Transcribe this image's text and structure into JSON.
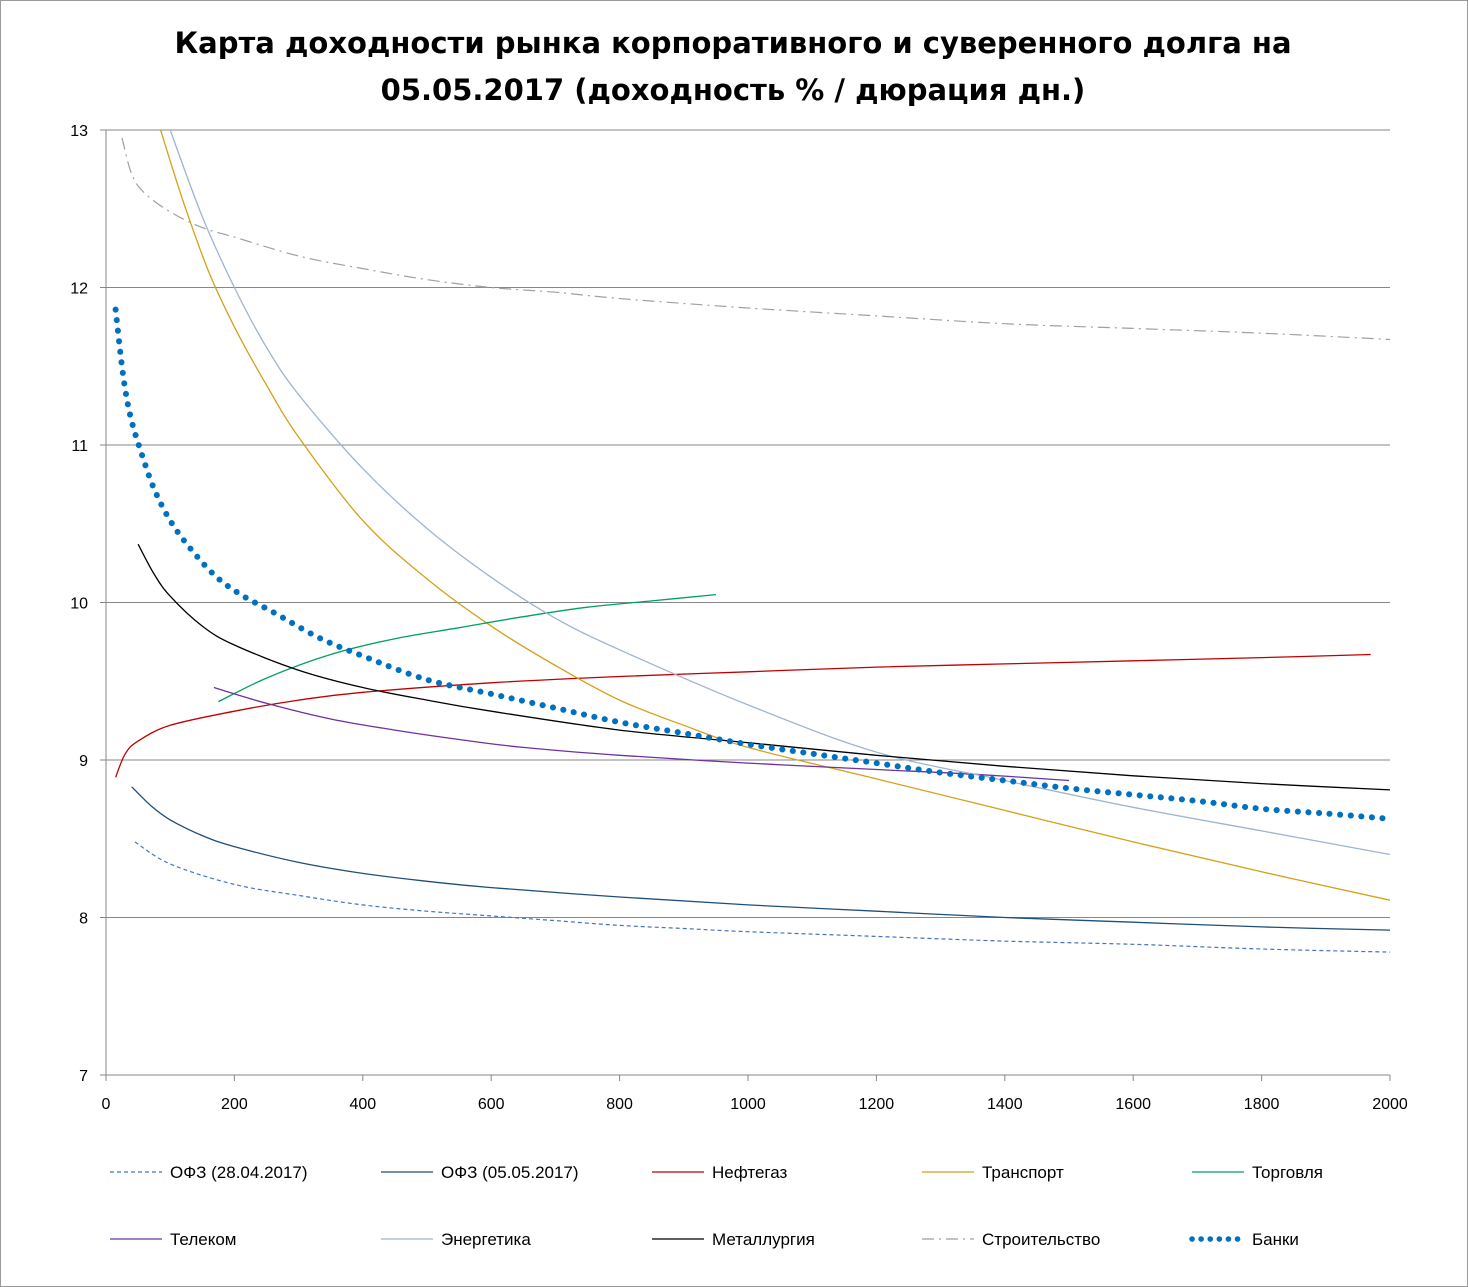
{
  "chart_data": {
    "type": "line",
    "title": "Карта доходности рынка корпоративного и суверенного долга на 05.05.2017 (доходность % / дюрация дн.)",
    "title_lines": [
      "Карта доходности рынка корпоративного и суверенного долга на",
      "05.05.2017 (доходность % / дюрация дн.)"
    ],
    "xlabel": "",
    "ylabel": "",
    "xlim": [
      0,
      2000
    ],
    "ylim": [
      7,
      13
    ],
    "x_ticks": [
      0,
      200,
      400,
      600,
      800,
      1000,
      1200,
      1400,
      1600,
      1800,
      2000
    ],
    "y_ticks": [
      7,
      8,
      9,
      10,
      11,
      12,
      13
    ],
    "grid": "horizontal",
    "legend_position": "bottom",
    "series": [
      {
        "name": "ОФЗ (28.04.2017)",
        "color": "#4472c4",
        "style": "dashed-thin",
        "points": [
          [
            45,
            8.48
          ],
          [
            100,
            8.34
          ],
          [
            200,
            8.21
          ],
          [
            300,
            8.14
          ],
          [
            400,
            8.08
          ],
          [
            500,
            8.04
          ],
          [
            600,
            8.01
          ],
          [
            700,
            7.98
          ],
          [
            800,
            7.95
          ],
          [
            900,
            7.93
          ],
          [
            1000,
            7.91
          ],
          [
            1200,
            7.88
          ],
          [
            1400,
            7.85
          ],
          [
            1600,
            7.83
          ],
          [
            1800,
            7.8
          ],
          [
            2000,
            7.78
          ]
        ]
      },
      {
        "name": "ОФЗ (05.05.2017)",
        "color": "#1f4e79",
        "style": "solid",
        "points": [
          [
            40,
            8.83
          ],
          [
            70,
            8.71
          ],
          [
            100,
            8.62
          ],
          [
            150,
            8.52
          ],
          [
            200,
            8.45
          ],
          [
            300,
            8.35
          ],
          [
            400,
            8.28
          ],
          [
            500,
            8.23
          ],
          [
            600,
            8.19
          ],
          [
            800,
            8.13
          ],
          [
            1000,
            8.08
          ],
          [
            1200,
            8.04
          ],
          [
            1400,
            8.0
          ],
          [
            1600,
            7.97
          ],
          [
            1800,
            7.94
          ],
          [
            2000,
            7.92
          ]
        ]
      },
      {
        "name": "Нефтегаз",
        "color": "#c00000",
        "style": "solid",
        "points": [
          [
            15,
            8.89
          ],
          [
            30,
            9.04
          ],
          [
            50,
            9.12
          ],
          [
            100,
            9.22
          ],
          [
            200,
            9.31
          ],
          [
            300,
            9.38
          ],
          [
            400,
            9.43
          ],
          [
            600,
            9.49
          ],
          [
            800,
            9.53
          ],
          [
            1000,
            9.56
          ],
          [
            1200,
            9.59
          ],
          [
            1400,
            9.61
          ],
          [
            1600,
            9.63
          ],
          [
            1800,
            9.65
          ],
          [
            1970,
            9.67
          ]
        ]
      },
      {
        "name": "Транспорт",
        "color": "#d4a017",
        "style": "solid",
        "points": [
          [
            85,
            13.0
          ],
          [
            120,
            12.55
          ],
          [
            160,
            12.1
          ],
          [
            200,
            11.75
          ],
          [
            250,
            11.38
          ],
          [
            300,
            11.05
          ],
          [
            400,
            10.52
          ],
          [
            500,
            10.15
          ],
          [
            600,
            9.85
          ],
          [
            700,
            9.6
          ],
          [
            800,
            9.38
          ],
          [
            900,
            9.22
          ],
          [
            1000,
            9.08
          ],
          [
            1200,
            8.88
          ],
          [
            1400,
            8.68
          ],
          [
            1600,
            8.48
          ],
          [
            1800,
            8.29
          ],
          [
            2000,
            8.11
          ]
        ]
      },
      {
        "name": "Торговля",
        "color": "#00a060",
        "style": "solid",
        "points": [
          [
            175,
            9.37
          ],
          [
            250,
            9.52
          ],
          [
            350,
            9.67
          ],
          [
            450,
            9.77
          ],
          [
            550,
            9.84
          ],
          [
            650,
            9.91
          ],
          [
            750,
            9.97
          ],
          [
            850,
            10.01
          ],
          [
            950,
            10.05
          ]
        ]
      },
      {
        "name": "Телеком",
        "color": "#7030a0",
        "style": "solid",
        "points": [
          [
            168,
            9.46
          ],
          [
            250,
            9.36
          ],
          [
            350,
            9.26
          ],
          [
            450,
            9.19
          ],
          [
            550,
            9.13
          ],
          [
            650,
            9.08
          ],
          [
            800,
            9.03
          ],
          [
            1000,
            8.98
          ],
          [
            1200,
            8.94
          ],
          [
            1350,
            8.91
          ],
          [
            1500,
            8.87
          ]
        ]
      },
      {
        "name": "Энергетика",
        "color": "#9fb4d0",
        "style": "solid",
        "points": [
          [
            100,
            13.0
          ],
          [
            150,
            12.45
          ],
          [
            200,
            12.0
          ],
          [
            250,
            11.62
          ],
          [
            300,
            11.32
          ],
          [
            400,
            10.85
          ],
          [
            500,
            10.47
          ],
          [
            600,
            10.16
          ],
          [
            700,
            9.9
          ],
          [
            800,
            9.7
          ],
          [
            1000,
            9.35
          ],
          [
            1200,
            9.05
          ],
          [
            1400,
            8.87
          ],
          [
            1600,
            8.7
          ],
          [
            1800,
            8.55
          ],
          [
            2000,
            8.4
          ]
        ]
      },
      {
        "name": "Металлургия",
        "color": "#000000",
        "style": "solid",
        "points": [
          [
            50,
            10.37
          ],
          [
            75,
            10.18
          ],
          [
            100,
            10.04
          ],
          [
            150,
            9.85
          ],
          [
            200,
            9.73
          ],
          [
            300,
            9.57
          ],
          [
            400,
            9.46
          ],
          [
            500,
            9.38
          ],
          [
            600,
            9.31
          ],
          [
            800,
            9.19
          ],
          [
            1000,
            9.11
          ],
          [
            1200,
            9.03
          ],
          [
            1400,
            8.96
          ],
          [
            1600,
            8.9
          ],
          [
            1800,
            8.85
          ],
          [
            2000,
            8.81
          ]
        ]
      },
      {
        "name": "Строительство",
        "color": "#a0a0a0",
        "style": "dashdot",
        "points": [
          [
            25,
            12.95
          ],
          [
            40,
            12.72
          ],
          [
            60,
            12.6
          ],
          [
            100,
            12.48
          ],
          [
            150,
            12.38
          ],
          [
            200,
            12.32
          ],
          [
            300,
            12.2
          ],
          [
            400,
            12.12
          ],
          [
            500,
            12.05
          ],
          [
            600,
            12.0
          ],
          [
            700,
            11.97
          ],
          [
            800,
            11.93
          ],
          [
            1000,
            11.87
          ],
          [
            1200,
            11.82
          ],
          [
            1400,
            11.77
          ],
          [
            1600,
            11.74
          ],
          [
            1800,
            11.71
          ],
          [
            2000,
            11.67
          ]
        ]
      },
      {
        "name": "Банки",
        "color": "#0070c0",
        "style": "dotted-thick",
        "points": [
          [
            15,
            11.86
          ],
          [
            22,
            11.6
          ],
          [
            30,
            11.35
          ],
          [
            40,
            11.15
          ],
          [
            55,
            10.95
          ],
          [
            75,
            10.72
          ],
          [
            100,
            10.52
          ],
          [
            130,
            10.35
          ],
          [
            170,
            10.17
          ],
          [
            210,
            10.05
          ],
          [
            260,
            9.94
          ],
          [
            330,
            9.78
          ],
          [
            400,
            9.66
          ],
          [
            500,
            9.51
          ],
          [
            600,
            9.42
          ],
          [
            700,
            9.33
          ],
          [
            800,
            9.24
          ],
          [
            900,
            9.17
          ],
          [
            1000,
            9.1
          ],
          [
            1100,
            9.04
          ],
          [
            1200,
            8.98
          ],
          [
            1300,
            8.92
          ],
          [
            1400,
            8.87
          ],
          [
            1500,
            8.82
          ],
          [
            1600,
            8.78
          ],
          [
            1700,
            8.74
          ],
          [
            1800,
            8.69
          ],
          [
            1900,
            8.66
          ],
          [
            1990,
            8.63
          ]
        ]
      }
    ]
  }
}
